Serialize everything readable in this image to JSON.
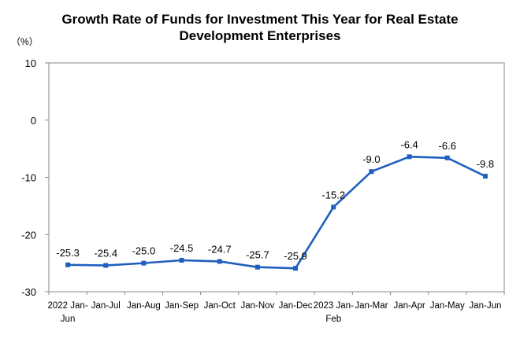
{
  "chart_data": {
    "type": "line",
    "title_line1": "Growth Rate of Funds for Investment This Year for Real Estate",
    "title_line2": "Development Enterprises",
    "unit_label": "（%）",
    "ylim": [
      -30,
      10
    ],
    "yticks": [
      "10",
      "0",
      "-10",
      "-20",
      "-30"
    ],
    "ytick_values": [
      10,
      0,
      -10,
      -20,
      -30
    ],
    "grid": false,
    "categories": [
      [
        "2022 Jan-",
        "Jun"
      ],
      [
        "Jan-Jul"
      ],
      [
        "Jan-Aug"
      ],
      [
        "Jan-Sep"
      ],
      [
        "Jan-Oct"
      ],
      [
        "Jan-Nov"
      ],
      [
        "Jan-Dec"
      ],
      [
        "2023 Jan-",
        "Feb"
      ],
      [
        "Jan-Mar"
      ],
      [
        "Jan-Apr"
      ],
      [
        "Jan-May"
      ],
      [
        "Jan-Jun"
      ]
    ],
    "values": [
      -25.3,
      -25.4,
      -25.0,
      -24.5,
      -24.7,
      -25.7,
      -25.9,
      -15.2,
      -9.0,
      -6.4,
      -6.6,
      -9.8
    ],
    "value_labels": [
      "-25.3",
      "-25.4",
      "-25.0",
      "-24.5",
      "-24.7",
      "-25.7",
      "-25.9",
      "-15.2",
      "-9.0",
      "-6.4",
      "-6.6",
      "-9.8"
    ],
    "line_color": "#1f5fbf",
    "axis_color": "#888888"
  }
}
